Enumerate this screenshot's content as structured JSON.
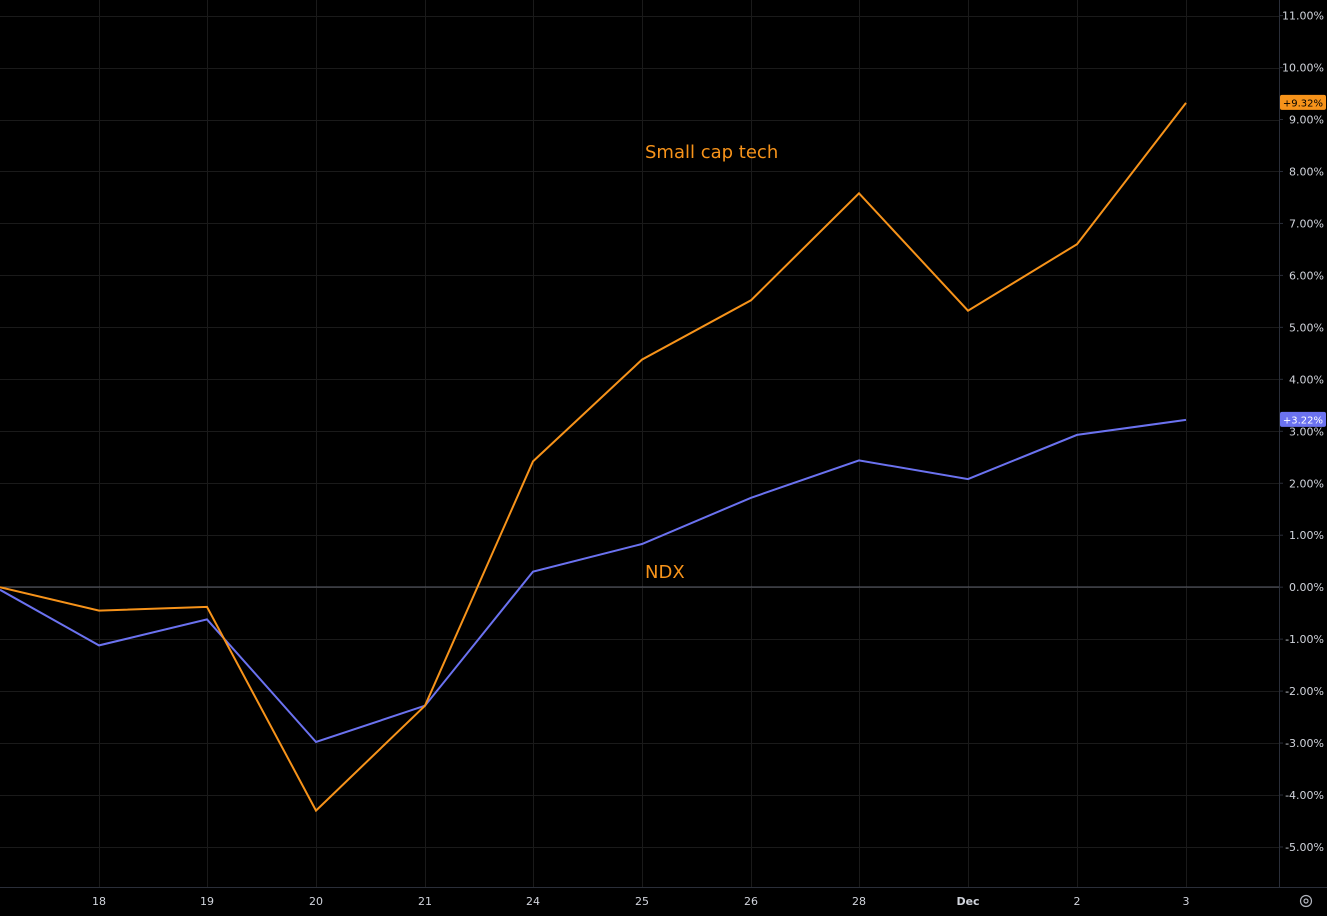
{
  "chart_data": {
    "type": "line",
    "x": [
      "",
      "18",
      "19",
      "20",
      "21",
      "24",
      "25",
      "26",
      "28",
      "Dec",
      "2",
      "3"
    ],
    "series": [
      {
        "name": "Small cap tech",
        "color": "#f7931a",
        "values": [
          0.0,
          -0.45,
          -0.38,
          -4.3,
          -2.28,
          2.42,
          4.38,
          5.52,
          7.58,
          5.32,
          6.6,
          9.32
        ]
      },
      {
        "name": "NDX",
        "color": "#6b72f0",
        "values": [
          -0.05,
          -1.12,
          -0.62,
          -2.98,
          -2.28,
          0.3,
          0.83,
          1.72,
          2.44,
          2.08,
          2.93,
          3.22
        ]
      }
    ],
    "y_ticks": [
      "11.00%",
      "10.00%",
      "9.00%",
      "8.00%",
      "7.00%",
      "6.00%",
      "5.00%",
      "4.00%",
      "3.00%",
      "2.00%",
      "1.00%",
      "0.00%",
      "-1.00%",
      "-2.00%",
      "-3.00%",
      "-4.00%",
      "-5.00%"
    ],
    "y_tick_values": [
      11,
      10,
      9,
      8,
      7,
      6,
      5,
      4,
      3,
      2,
      1,
      0,
      -1,
      -2,
      -3,
      -4,
      -5
    ],
    "ylim": [
      -5.77,
      11.3
    ],
    "grid": true,
    "last_value_badges": [
      "+9.32%",
      "+3.22%"
    ],
    "annotations": [
      "Small cap tech",
      "NDX"
    ],
    "annotation_color": "#f7931a"
  },
  "colors": {
    "background": "#000000",
    "grid": "#1a1a1a",
    "zero_line": "#5d606b",
    "axis_text": "#d1d4dc"
  },
  "icons": {
    "settings": "settings-gear-icon"
  }
}
